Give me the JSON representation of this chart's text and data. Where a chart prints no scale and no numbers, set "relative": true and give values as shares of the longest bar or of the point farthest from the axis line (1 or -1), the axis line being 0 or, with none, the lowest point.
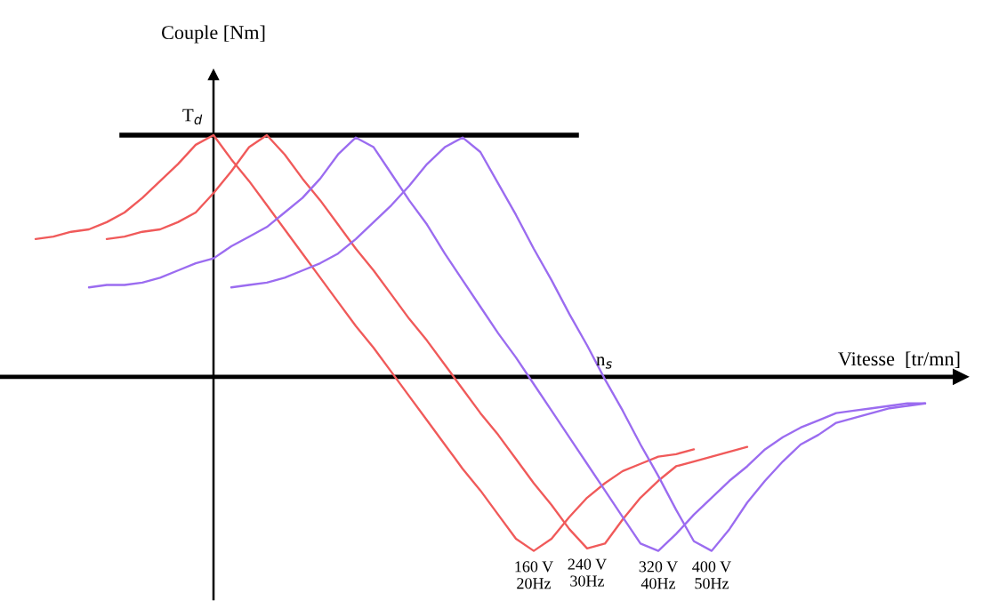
{
  "chart_data": {
    "type": "line",
    "relative": true,
    "xlabel": "Vitesse  [tr/mn]",
    "ylabel": "Couple [Nm]",
    "categories": [
      null,
      null,
      null,
      null,
      null,
      null,
      null,
      null,
      null,
      null,
      null,
      null,
      null,
      null,
      null,
      null,
      null,
      null,
      null,
      null,
      null,
      null,
      null,
      null,
      null,
      null,
      null,
      null,
      null,
      null,
      null,
      null,
      null,
      null,
      null,
      null,
      null,
      null,
      null,
      null,
      null,
      null,
      null,
      null,
      null,
      null,
      null,
      null,
      null,
      null,
      null,
      null
    ],
    "series": [
      {
        "name": "160 V\n20Hz",
        "color": "#f05a5a",
        "values": [
          0.57,
          0.58,
          0.6,
          0.61,
          0.64,
          0.68,
          0.74,
          0.81,
          0.88,
          0.96,
          1.0,
          0.9,
          0.81,
          0.71,
          0.61,
          0.51,
          0.41,
          0.31,
          0.21,
          0.12,
          0.02,
          -0.08,
          -0.18,
          -0.28,
          -0.38,
          -0.47,
          -0.57,
          -0.67,
          -0.72,
          -0.67,
          -0.58,
          -0.5,
          -0.44,
          -0.39,
          -0.36,
          -0.33,
          -0.32,
          -0.3,
          null,
          null,
          null,
          null,
          null,
          null,
          null,
          null,
          null,
          null,
          null,
          null,
          null,
          null
        ]
      },
      {
        "name": "240 V\n30Hz",
        "color": "#f05a5a",
        "values": [
          null,
          null,
          null,
          null,
          0.57,
          0.58,
          0.6,
          0.61,
          0.64,
          0.68,
          0.76,
          0.85,
          0.95,
          1.0,
          0.92,
          0.82,
          0.73,
          0.63,
          0.53,
          0.44,
          0.34,
          0.24,
          0.15,
          0.05,
          -0.05,
          -0.15,
          -0.24,
          -0.34,
          -0.44,
          -0.53,
          -0.63,
          -0.71,
          -0.69,
          -0.59,
          -0.5,
          -0.43,
          -0.37,
          -0.35,
          -0.33,
          -0.31,
          -0.29,
          null,
          null,
          null,
          null,
          null,
          null,
          null,
          null,
          null,
          null,
          null
        ]
      },
      {
        "name": "320 V\n40Hz",
        "color": "#9b6cf0",
        "values": [
          null,
          null,
          null,
          0.37,
          0.38,
          0.38,
          0.39,
          0.41,
          0.44,
          0.47,
          0.49,
          0.54,
          0.58,
          0.62,
          0.68,
          0.74,
          0.82,
          0.92,
          0.99,
          0.95,
          0.84,
          0.73,
          0.63,
          0.51,
          0.4,
          0.29,
          0.18,
          0.08,
          -0.03,
          -0.14,
          -0.25,
          -0.36,
          -0.47,
          -0.58,
          -0.69,
          -0.72,
          -0.65,
          -0.57,
          -0.5,
          -0.43,
          -0.37,
          -0.3,
          -0.25,
          -0.21,
          -0.18,
          -0.15,
          -0.14,
          -0.13,
          -0.12,
          -0.11,
          -0.11,
          null
        ]
      },
      {
        "name": "400 V\n50Hz",
        "color": "#9b6cf0",
        "values": [
          null,
          null,
          null,
          null,
          null,
          null,
          null,
          null,
          null,
          null,
          null,
          0.37,
          0.38,
          0.39,
          0.41,
          0.44,
          0.47,
          0.51,
          0.57,
          0.64,
          0.71,
          0.79,
          0.88,
          0.95,
          0.99,
          0.93,
          0.8,
          0.67,
          0.53,
          0.4,
          0.26,
          0.13,
          -0.01,
          -0.14,
          -0.28,
          -0.41,
          -0.55,
          -0.68,
          -0.72,
          -0.63,
          -0.52,
          -0.43,
          -0.35,
          -0.28,
          -0.24,
          -0.19,
          -0.17,
          -0.15,
          -0.13,
          -0.12,
          -0.11,
          null
        ]
      }
    ],
    "ref_lines": [
      {
        "axis": "y",
        "value": 1.0,
        "label": "T$_{d}$",
        "color": "#000000"
      }
    ],
    "annotations": [
      "n$_{s}$"
    ]
  }
}
